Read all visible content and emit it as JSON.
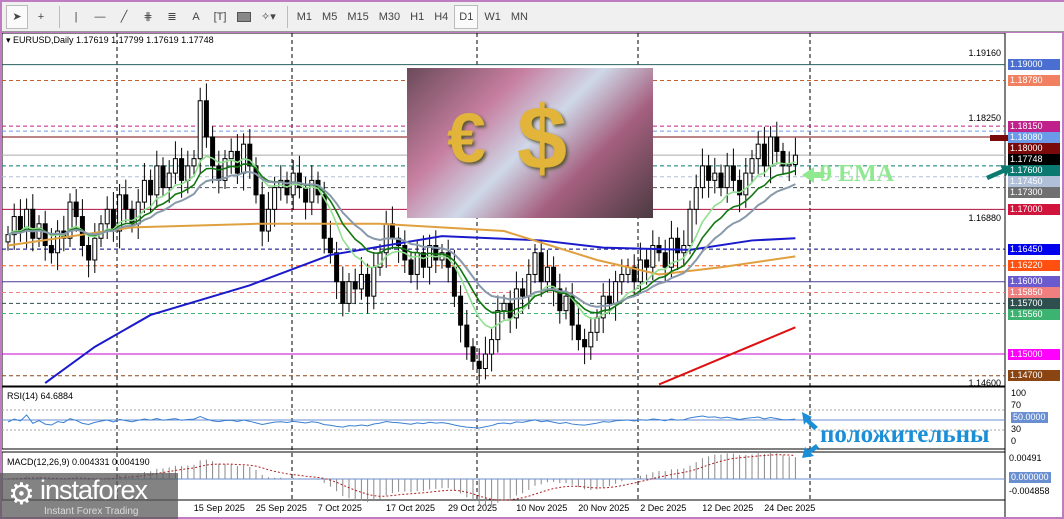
{
  "toolbar": {
    "tools": [
      "cursor-icon",
      "crosshair-icon",
      "vertical-line-icon",
      "horizontal-line-icon",
      "trendline-icon",
      "fibonacci-icon",
      "fibo-levels-icon",
      "text-icon",
      "text-label-icon",
      "rectangle-icon",
      "shapes-menu-icon"
    ],
    "text_tool": "A",
    "timeframes": [
      "M1",
      "M5",
      "M15",
      "M30",
      "H1",
      "H4",
      "D1",
      "W1",
      "MN"
    ],
    "selected_timeframe": "D1"
  },
  "header": {
    "symbol_info": "EURUSD,Daily  1.17619 1.17799 1.17619 1.17748"
  },
  "annotations": {
    "ema_label": "9 EMA",
    "positive_label": "положительны"
  },
  "logo": {
    "name": "instaforex",
    "tagline": "Instant Forex Trading"
  },
  "chart_data": {
    "type": "candlestick",
    "symbol": "EURUSD",
    "timeframe": "Daily",
    "last": {
      "open": 1.17619,
      "high": 1.17799,
      "low": 1.17619,
      "close": 1.17748
    },
    "ylim": [
      1.146,
      1.1916
    ],
    "price_ticks": [
      "1.19160",
      "1.18250",
      "1.16880",
      "1.14600"
    ],
    "date_labels": [
      "15 Sep 2025",
      "25 Sep 2025",
      "7 Oct 2025",
      "17 Oct 2025",
      "29 Oct 2025",
      "10 Nov 2025",
      "20 Nov 2025",
      "2 Dec 2025",
      "12 Dec 2025",
      "24 Dec 2025"
    ],
    "date_label_bars": [
      34,
      44,
      54,
      65,
      75,
      86,
      96,
      106,
      116,
      126
    ],
    "closes": [
      1.1665,
      1.169,
      1.167,
      1.17,
      1.166,
      1.168,
      1.165,
      1.164,
      1.167,
      1.166,
      1.171,
      1.169,
      1.165,
      1.163,
      1.166,
      1.168,
      1.17,
      1.167,
      1.172,
      1.17,
      1.168,
      1.171,
      1.174,
      1.172,
      1.176,
      1.173,
      1.175,
      1.177,
      1.174,
      1.176,
      1.177,
      1.185,
      1.18,
      1.176,
      1.174,
      1.177,
      1.178,
      1.175,
      1.179,
      1.176,
      1.172,
      1.167,
      1.17,
      1.173,
      1.174,
      1.172,
      1.175,
      1.173,
      1.171,
      1.174,
      1.172,
      1.166,
      1.164,
      1.16,
      1.157,
      1.16,
      1.159,
      1.161,
      1.158,
      1.162,
      1.164,
      1.168,
      1.166,
      1.165,
      1.163,
      1.161,
      1.164,
      1.162,
      1.165,
      1.163,
      1.164,
      1.162,
      1.158,
      1.154,
      1.151,
      1.149,
      1.148,
      1.15,
      1.152,
      1.156,
      1.157,
      1.155,
      1.159,
      1.158,
      1.161,
      1.164,
      1.16,
      1.162,
      1.159,
      1.156,
      1.158,
      1.154,
      1.152,
      1.151,
      1.153,
      1.155,
      1.158,
      1.157,
      1.16,
      1.161,
      1.162,
      1.16,
      1.163,
      1.162,
      1.165,
      1.164,
      1.162,
      1.166,
      1.164,
      1.165,
      1.17,
      1.173,
      1.176,
      1.174,
      1.175,
      1.173,
      1.176,
      1.174,
      1.172,
      1.175,
      1.177,
      1.179,
      1.176,
      1.18,
      1.178,
      1.176,
      1.1762,
      1.17748
    ],
    "moving_averages": [
      {
        "color": "#1a1acc",
        "points": [
          [
            6,
            1.146
          ],
          [
            14,
            1.151
          ],
          [
            23,
            1.1554
          ],
          [
            39,
            1.1595
          ],
          [
            52,
            1.1637
          ],
          [
            70,
            1.1663
          ],
          [
            86,
            1.1657
          ],
          [
            96,
            1.1647
          ],
          [
            110,
            1.1644
          ],
          [
            120,
            1.1657
          ],
          [
            127,
            1.166
          ]
        ]
      },
      {
        "color": "#dd1111",
        "points": [
          [
            105,
            1.1458
          ],
          [
            127,
            1.1537
          ]
        ]
      },
      {
        "color": "#e0a040",
        "points": [
          [
            0,
            1.165
          ],
          [
            20,
            1.1675
          ],
          [
            40,
            1.168
          ],
          [
            60,
            1.168
          ],
          [
            80,
            1.167
          ],
          [
            95,
            1.163
          ],
          [
            105,
            1.161
          ],
          [
            115,
            1.162
          ],
          [
            127,
            1.1635
          ]
        ]
      }
    ],
    "ema_periods": [
      {
        "period": 9,
        "color": "#90e090"
      },
      {
        "period": 14,
        "color": "#117711"
      },
      {
        "period": 21,
        "color": "#8899aa"
      }
    ],
    "levels": [
      {
        "price": "1.19000",
        "color": "#4a6fd0",
        "line": "#2a6060",
        "style": "solid"
      },
      {
        "price": "1.18780",
        "color": "#f08060",
        "line": "#c06030",
        "style": "dash"
      },
      {
        "price": "1.18150",
        "color": "#c0208a",
        "line": "#c0208a",
        "style": "dash"
      },
      {
        "price": "1.18080",
        "color": "#6a9ae8",
        "line": "#6a9ae8",
        "style": "dash"
      },
      {
        "price": "1.18000",
        "color": "#7a0a0a",
        "line": "#7a0a0a",
        "style": "solid"
      },
      {
        "price": "1.17748",
        "color": "#000000",
        "line": "#aaaaaa",
        "style": "solid"
      },
      {
        "price": "1.17600",
        "color": "#0a7a70",
        "line": "#0a7a70",
        "style": "dash"
      },
      {
        "price": "1.17450",
        "color": "#b0c0d8",
        "line": "#b0c0d8",
        "style": "dash"
      },
      {
        "price": "1.17300",
        "color": "#707070",
        "line": "#505050",
        "style": "dash"
      },
      {
        "price": "1.17000",
        "color": "#d0143c",
        "line": "#b01040",
        "style": "solid"
      },
      {
        "price": "1.16450",
        "color": "#0000ee",
        "line": "#000080",
        "style": "dash"
      },
      {
        "price": "1.16220",
        "color": "#ff5010",
        "line": "#ff5010",
        "style": "dash"
      },
      {
        "price": "1.16000",
        "color": "#6a5acd",
        "line": "#4a3a9d",
        "style": "solid"
      },
      {
        "price": "1.15850",
        "color": "#f08080",
        "line": "#f08080",
        "style": "dash"
      },
      {
        "price": "1.15700",
        "color": "#2f4f4f",
        "line": "#2f4f4f",
        "style": "dash"
      },
      {
        "price": "1.15560",
        "color": "#3cb371",
        "line": "#3cb371",
        "style": "dash"
      },
      {
        "price": "1.15000",
        "color": "#ff00ff",
        "line": "#cc00cc",
        "style": "solid"
      },
      {
        "price": "1.14700",
        "color": "#8b4513",
        "line": "#8b4513",
        "style": "dash"
      }
    ],
    "rsi": {
      "label": "RSI(14) 64.6884",
      "ticks": [
        "100",
        "70",
        "50.0000",
        "30",
        "0"
      ]
    },
    "macd": {
      "label": "MACD(12,26,9) 0.004331 0.004190",
      "ticks": [
        "0.00491",
        "0.000000",
        "-0.004858"
      ]
    }
  }
}
